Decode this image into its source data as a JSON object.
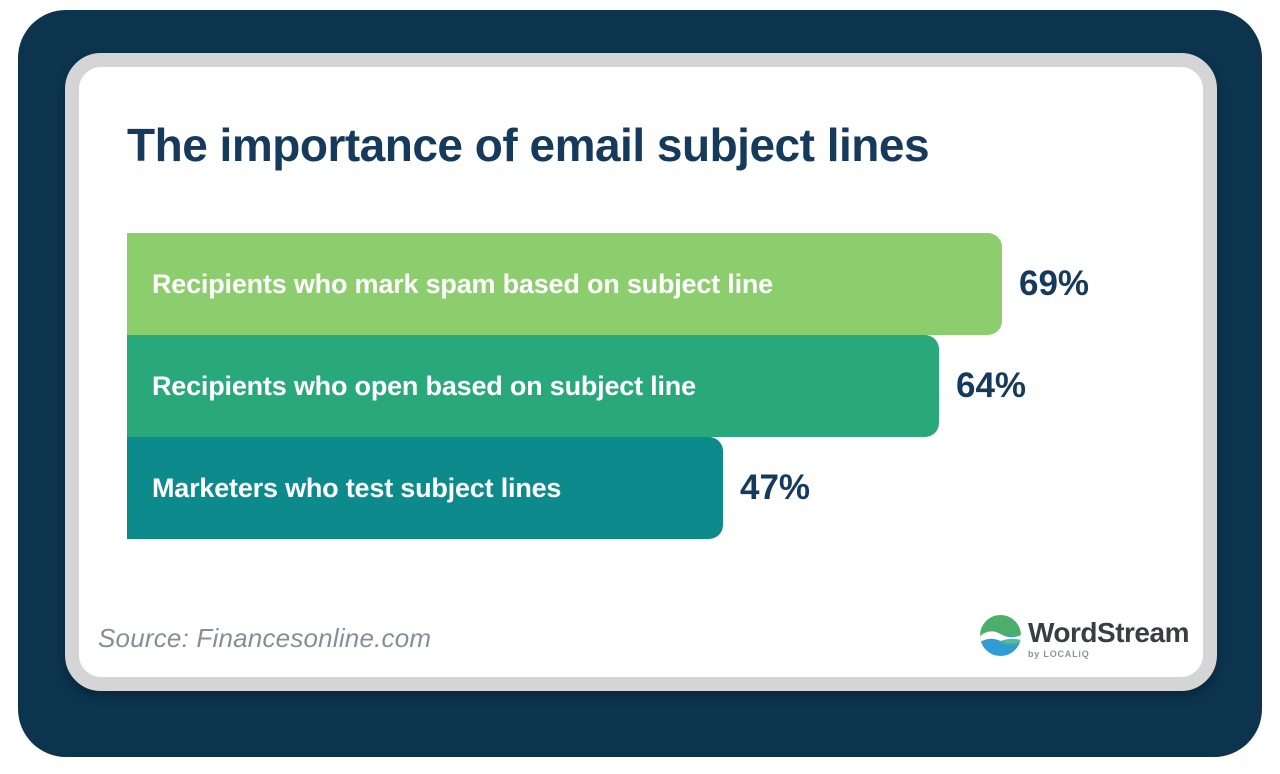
{
  "title": "The importance of email subject lines",
  "chart_data": {
    "type": "bar",
    "orientation": "horizontal",
    "categories": [
      "Recipients who mark spam based on subject line",
      "Recipients who open based on subject line",
      "Marketers who test subject lines"
    ],
    "values": [
      69,
      64,
      47
    ],
    "value_labels": [
      "69%",
      "64%",
      "47%"
    ],
    "unit": "%",
    "bar_colors": [
      "#8CCE6E",
      "#29A97B",
      "#0D8A8C"
    ],
    "value_label_position": "right-of-bar",
    "axes": "none",
    "grid": false,
    "legend": "none",
    "title": "The importance of email subject lines"
  },
  "source": {
    "label": "Source: Financesonline.com"
  },
  "logo": {
    "name": "WordStream",
    "byline": "by LOCALiQ",
    "icon": "wordstream-globe-icon"
  },
  "colors": {
    "frame_navy": "#0C344F",
    "card_border_gray": "#D5D5D5",
    "card_background": "#FFFFFF",
    "title_navy": "#163A5C",
    "value_navy": "#163A5C",
    "bar_text_white": "#FFFFFF",
    "source_gray": "#878E99",
    "logo_text": "#3A3E42",
    "logo_byline_gray": "#8E9499",
    "logo_green": "#4BAE6B",
    "logo_blue": "#2F9CD8"
  }
}
